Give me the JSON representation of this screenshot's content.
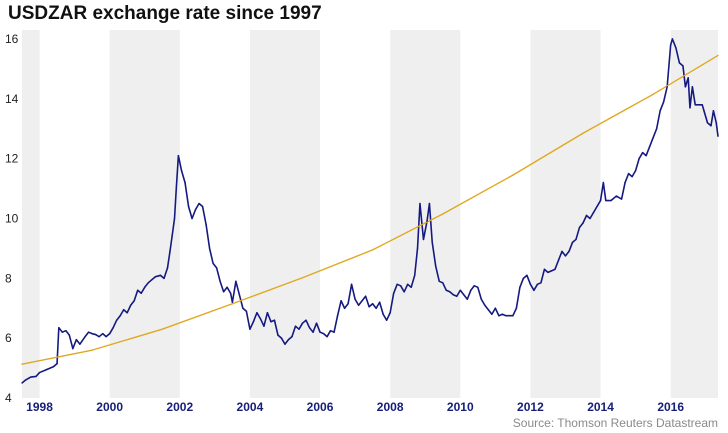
{
  "title": "USDZAR exchange rate since 1997",
  "source": "Source: Thomson Reuters Datastream",
  "colors": {
    "series": "#151a80",
    "trend": "#e0a820",
    "band": "#efefef",
    "xtick": "#16207a",
    "axis": "#222222"
  },
  "chart_data": {
    "type": "line",
    "title": "USDZAR exchange rate since 1997",
    "xlabel": "",
    "ylabel": "",
    "xlim": [
      1997.5,
      2017.35
    ],
    "ylim": [
      4,
      16.3
    ],
    "y_ticks": [
      4,
      6,
      8,
      10,
      12,
      14,
      16
    ],
    "x_ticks": [
      1998,
      2000,
      2002,
      2004,
      2006,
      2008,
      2010,
      2012,
      2014,
      2016
    ],
    "shaded_bands": [
      [
        1997.5,
        1998.0
      ],
      [
        2000.0,
        2002.0
      ],
      [
        2004.0,
        2006.0
      ],
      [
        2008.0,
        2010.0
      ],
      [
        2012.0,
        2014.0
      ],
      [
        2016.0,
        2017.35
      ]
    ],
    "grid": false,
    "legend": "none",
    "series": [
      {
        "color": "#151a80",
        "points": [
          [
            1997.5,
            4.5
          ],
          [
            1997.6,
            4.6
          ],
          [
            1997.75,
            4.7
          ],
          [
            1997.9,
            4.72
          ],
          [
            1998.0,
            4.85
          ],
          [
            1998.2,
            4.95
          ],
          [
            1998.4,
            5.05
          ],
          [
            1998.5,
            5.15
          ],
          [
            1998.55,
            6.35
          ],
          [
            1998.65,
            6.2
          ],
          [
            1998.75,
            6.25
          ],
          [
            1998.85,
            6.1
          ],
          [
            1998.95,
            5.65
          ],
          [
            1999.05,
            5.95
          ],
          [
            1999.15,
            5.8
          ],
          [
            1999.3,
            6.05
          ],
          [
            1999.4,
            6.2
          ],
          [
            1999.5,
            6.15
          ],
          [
            1999.6,
            6.12
          ],
          [
            1999.7,
            6.05
          ],
          [
            1999.8,
            6.15
          ],
          [
            1999.9,
            6.05
          ],
          [
            2000.0,
            6.15
          ],
          [
            2000.1,
            6.35
          ],
          [
            2000.2,
            6.6
          ],
          [
            2000.3,
            6.75
          ],
          [
            2000.4,
            6.95
          ],
          [
            2000.5,
            6.85
          ],
          [
            2000.6,
            7.1
          ],
          [
            2000.7,
            7.25
          ],
          [
            2000.8,
            7.6
          ],
          [
            2000.9,
            7.5
          ],
          [
            2001.0,
            7.7
          ],
          [
            2001.1,
            7.85
          ],
          [
            2001.2,
            7.95
          ],
          [
            2001.3,
            8.05
          ],
          [
            2001.45,
            8.1
          ],
          [
            2001.55,
            8.0
          ],
          [
            2001.65,
            8.35
          ],
          [
            2001.72,
            8.9
          ],
          [
            2001.78,
            9.4
          ],
          [
            2001.85,
            10.0
          ],
          [
            2001.9,
            11.0
          ],
          [
            2001.96,
            12.1
          ],
          [
            2002.05,
            11.6
          ],
          [
            2002.15,
            11.2
          ],
          [
            2002.25,
            10.4
          ],
          [
            2002.35,
            10.0
          ],
          [
            2002.45,
            10.3
          ],
          [
            2002.55,
            10.5
          ],
          [
            2002.65,
            10.4
          ],
          [
            2002.75,
            9.8
          ],
          [
            2002.85,
            9.0
          ],
          [
            2002.95,
            8.5
          ],
          [
            2003.05,
            8.35
          ],
          [
            2003.15,
            7.9
          ],
          [
            2003.25,
            7.55
          ],
          [
            2003.35,
            7.7
          ],
          [
            2003.45,
            7.5
          ],
          [
            2003.5,
            7.2
          ],
          [
            2003.6,
            7.9
          ],
          [
            2003.7,
            7.45
          ],
          [
            2003.8,
            7.0
          ],
          [
            2003.9,
            6.9
          ],
          [
            2004.0,
            6.3
          ],
          [
            2004.1,
            6.55
          ],
          [
            2004.2,
            6.85
          ],
          [
            2004.3,
            6.65
          ],
          [
            2004.4,
            6.4
          ],
          [
            2004.5,
            6.85
          ],
          [
            2004.6,
            6.55
          ],
          [
            2004.7,
            6.6
          ],
          [
            2004.8,
            6.1
          ],
          [
            2004.9,
            6.0
          ],
          [
            2005.0,
            5.8
          ],
          [
            2005.1,
            5.95
          ],
          [
            2005.2,
            6.05
          ],
          [
            2005.3,
            6.4
          ],
          [
            2005.4,
            6.3
          ],
          [
            2005.5,
            6.5
          ],
          [
            2005.6,
            6.6
          ],
          [
            2005.7,
            6.35
          ],
          [
            2005.8,
            6.2
          ],
          [
            2005.9,
            6.5
          ],
          [
            2006.0,
            6.2
          ],
          [
            2006.1,
            6.15
          ],
          [
            2006.2,
            6.05
          ],
          [
            2006.3,
            6.25
          ],
          [
            2006.4,
            6.2
          ],
          [
            2006.5,
            6.75
          ],
          [
            2006.6,
            7.25
          ],
          [
            2006.7,
            7.0
          ],
          [
            2006.8,
            7.15
          ],
          [
            2006.9,
            7.8
          ],
          [
            2007.0,
            7.3
          ],
          [
            2007.1,
            7.1
          ],
          [
            2007.2,
            7.25
          ],
          [
            2007.3,
            7.4
          ],
          [
            2007.4,
            7.05
          ],
          [
            2007.5,
            7.15
          ],
          [
            2007.6,
            7.0
          ],
          [
            2007.7,
            7.2
          ],
          [
            2007.8,
            6.8
          ],
          [
            2007.9,
            6.6
          ],
          [
            2008.0,
            6.85
          ],
          [
            2008.1,
            7.5
          ],
          [
            2008.2,
            7.8
          ],
          [
            2008.3,
            7.75
          ],
          [
            2008.4,
            7.55
          ],
          [
            2008.5,
            7.8
          ],
          [
            2008.6,
            7.7
          ],
          [
            2008.7,
            8.1
          ],
          [
            2008.78,
            9.0
          ],
          [
            2008.85,
            10.5
          ],
          [
            2008.95,
            9.3
          ],
          [
            2009.05,
            9.9
          ],
          [
            2009.12,
            10.5
          ],
          [
            2009.2,
            9.2
          ],
          [
            2009.3,
            8.4
          ],
          [
            2009.4,
            7.9
          ],
          [
            2009.5,
            7.85
          ],
          [
            2009.6,
            7.6
          ],
          [
            2009.7,
            7.55
          ],
          [
            2009.8,
            7.45
          ],
          [
            2009.9,
            7.4
          ],
          [
            2010.0,
            7.6
          ],
          [
            2010.1,
            7.45
          ],
          [
            2010.2,
            7.3
          ],
          [
            2010.3,
            7.6
          ],
          [
            2010.4,
            7.75
          ],
          [
            2010.5,
            7.7
          ],
          [
            2010.6,
            7.3
          ],
          [
            2010.7,
            7.1
          ],
          [
            2010.8,
            6.95
          ],
          [
            2010.9,
            6.8
          ],
          [
            2011.0,
            7.0
          ],
          [
            2011.1,
            6.75
          ],
          [
            2011.2,
            6.8
          ],
          [
            2011.3,
            6.75
          ],
          [
            2011.4,
            6.75
          ],
          [
            2011.5,
            6.75
          ],
          [
            2011.6,
            7.0
          ],
          [
            2011.7,
            7.7
          ],
          [
            2011.8,
            8.0
          ],
          [
            2011.9,
            8.1
          ],
          [
            2012.0,
            7.8
          ],
          [
            2012.1,
            7.6
          ],
          [
            2012.2,
            7.8
          ],
          [
            2012.3,
            7.85
          ],
          [
            2012.4,
            8.3
          ],
          [
            2012.5,
            8.2
          ],
          [
            2012.6,
            8.25
          ],
          [
            2012.7,
            8.3
          ],
          [
            2012.8,
            8.6
          ],
          [
            2012.9,
            8.9
          ],
          [
            2013.0,
            8.75
          ],
          [
            2013.1,
            8.9
          ],
          [
            2013.2,
            9.2
          ],
          [
            2013.3,
            9.3
          ],
          [
            2013.4,
            9.7
          ],
          [
            2013.5,
            9.85
          ],
          [
            2013.6,
            10.1
          ],
          [
            2013.7,
            10.0
          ],
          [
            2013.8,
            10.2
          ],
          [
            2013.9,
            10.4
          ],
          [
            2014.0,
            10.6
          ],
          [
            2014.08,
            11.2
          ],
          [
            2014.15,
            10.6
          ],
          [
            2014.3,
            10.6
          ],
          [
            2014.45,
            10.75
          ],
          [
            2014.6,
            10.65
          ],
          [
            2014.7,
            11.2
          ],
          [
            2014.8,
            11.5
          ],
          [
            2014.9,
            11.4
          ],
          [
            2015.0,
            11.6
          ],
          [
            2015.1,
            12.0
          ],
          [
            2015.2,
            12.2
          ],
          [
            2015.3,
            12.1
          ],
          [
            2015.4,
            12.4
          ],
          [
            2015.5,
            12.7
          ],
          [
            2015.6,
            13.0
          ],
          [
            2015.7,
            13.6
          ],
          [
            2015.8,
            13.9
          ],
          [
            2015.9,
            14.4
          ],
          [
            2016.0,
            15.8
          ],
          [
            2016.05,
            16.0
          ],
          [
            2016.15,
            15.7
          ],
          [
            2016.25,
            15.2
          ],
          [
            2016.35,
            15.1
          ],
          [
            2016.42,
            14.4
          ],
          [
            2016.5,
            14.7
          ],
          [
            2016.55,
            13.7
          ],
          [
            2016.62,
            14.4
          ],
          [
            2016.7,
            13.8
          ],
          [
            2016.8,
            13.8
          ],
          [
            2016.9,
            13.8
          ],
          [
            2016.95,
            13.6
          ],
          [
            2017.05,
            13.2
          ],
          [
            2017.15,
            13.1
          ],
          [
            2017.22,
            13.6
          ],
          [
            2017.3,
            13.2
          ],
          [
            2017.35,
            12.75
          ]
        ]
      },
      {
        "color": "#e0a820",
        "points": [
          [
            1997.5,
            5.13
          ],
          [
            1999.5,
            5.6
          ],
          [
            2001.5,
            6.3
          ],
          [
            2003.5,
            7.15
          ],
          [
            2005.5,
            8.02
          ],
          [
            2007.5,
            8.95
          ],
          [
            2009.5,
            10.15
          ],
          [
            2011.5,
            11.45
          ],
          [
            2013.5,
            12.85
          ],
          [
            2015.5,
            14.15
          ],
          [
            2017.35,
            15.45
          ]
        ]
      }
    ]
  }
}
